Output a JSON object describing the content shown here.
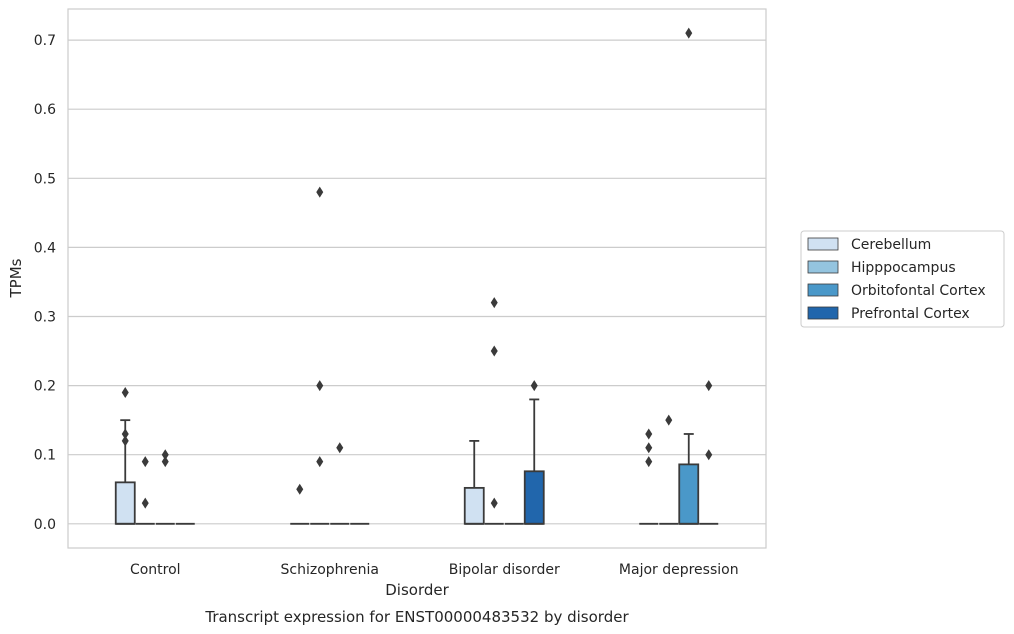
{
  "chart_data": {
    "type": "box",
    "title": "Transcript expression for ENST00000483532 by disorder",
    "xlabel": "Disorder",
    "ylabel": "TPMs",
    "ylim": [
      -0.035,
      0.745
    ],
    "yticks": [
      "0.0",
      "0.1",
      "0.2",
      "0.3",
      "0.4",
      "0.5",
      "0.6",
      "0.7"
    ],
    "categories": [
      "Control",
      "Schizophrenia",
      "Bipolar disorder",
      "Major depression"
    ],
    "grid": true,
    "legend_position": "right",
    "series": [
      {
        "name": "Cerebellum",
        "color": "#d0e1f2",
        "boxes": [
          {
            "q1": 0,
            "median": 0,
            "q3": 0.06,
            "whislo": 0,
            "whishi": 0.15,
            "fliers": [
              0.19,
              0.13,
              0.12
            ]
          },
          {
            "q1": 0,
            "median": 0,
            "q3": 0,
            "whislo": 0,
            "whishi": 0,
            "fliers": [
              0.05
            ]
          },
          {
            "q1": 0,
            "median": 0,
            "q3": 0.052,
            "whislo": 0,
            "whishi": 0.12,
            "fliers": []
          },
          {
            "q1": 0,
            "median": 0,
            "q3": 0,
            "whislo": 0,
            "whishi": 0,
            "fliers": [
              0.13,
              0.11,
              0.09
            ]
          }
        ]
      },
      {
        "name": "Hipppocampus",
        "color": "#94c4df",
        "boxes": [
          {
            "q1": 0,
            "median": 0,
            "q3": 0,
            "whislo": 0,
            "whishi": 0,
            "fliers": [
              0.09,
              0.03
            ]
          },
          {
            "q1": 0,
            "median": 0,
            "q3": 0,
            "whislo": 0,
            "whishi": 0,
            "fliers": [
              0.48,
              0.2,
              0.09
            ]
          },
          {
            "q1": 0,
            "median": 0,
            "q3": 0,
            "whislo": 0,
            "whishi": 0,
            "fliers": [
              0.32,
              0.25,
              0.03
            ]
          },
          {
            "q1": 0,
            "median": 0,
            "q3": 0,
            "whislo": 0,
            "whishi": 0,
            "fliers": [
              0.15
            ]
          }
        ]
      },
      {
        "name": "Orbitofontal Cortex",
        "color": "#4a98c9",
        "boxes": [
          {
            "q1": 0,
            "median": 0,
            "q3": 0,
            "whislo": 0,
            "whishi": 0,
            "fliers": [
              0.1,
              0.09
            ]
          },
          {
            "q1": 0,
            "median": 0,
            "q3": 0,
            "whislo": 0,
            "whishi": 0,
            "fliers": [
              0.11
            ]
          },
          {
            "q1": 0,
            "median": 0,
            "q3": 0,
            "whislo": 0,
            "whishi": 0,
            "fliers": []
          },
          {
            "q1": 0,
            "median": 0,
            "q3": 0.086,
            "whislo": 0,
            "whishi": 0.13,
            "fliers": [
              0.71
            ]
          }
        ]
      },
      {
        "name": "Prefrontal Cortex",
        "color": "#2166ac",
        "boxes": [
          {
            "q1": 0,
            "median": 0,
            "q3": 0,
            "whislo": 0,
            "whishi": 0,
            "fliers": []
          },
          {
            "q1": 0,
            "median": 0,
            "q3": 0,
            "whislo": 0,
            "whishi": 0,
            "fliers": []
          },
          {
            "q1": 0,
            "median": 0,
            "q3": 0.076,
            "whislo": 0,
            "whishi": 0.18,
            "fliers": [
              0.2
            ]
          },
          {
            "q1": 0,
            "median": 0,
            "q3": 0,
            "whislo": 0,
            "whishi": 0,
            "fliers": [
              0.2,
              0.1
            ]
          }
        ]
      }
    ]
  }
}
